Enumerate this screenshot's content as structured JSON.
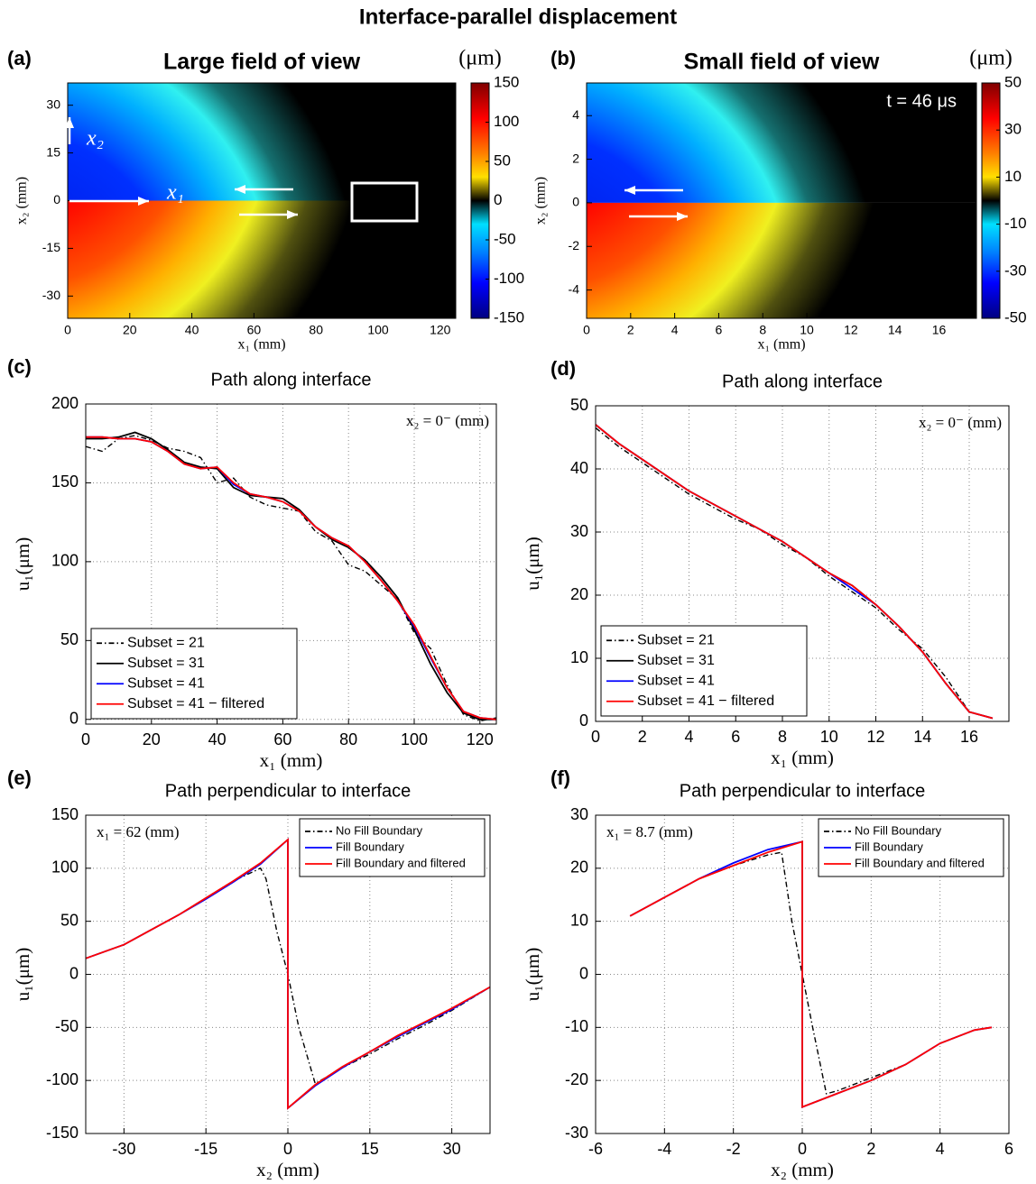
{
  "title": "Interface-parallel displacement",
  "chart_data": [
    {
      "type": "heatmap",
      "label": "(a)",
      "title": "Large field of view",
      "xlabel": "x₁ (mm)",
      "ylabel": "x₂ (mm)",
      "xlim": [
        0,
        125
      ],
      "xticks": [
        0,
        20,
        40,
        60,
        80,
        100,
        120
      ],
      "ylim": [
        -37,
        37
      ],
      "yticks": [
        -30,
        -15,
        0,
        15,
        30
      ],
      "colorbar_label": "(μm)",
      "clim": [
        -150,
        150
      ],
      "cticks": [
        -150,
        -100,
        -50,
        0,
        50,
        100,
        150
      ],
      "annotations": [
        "x₂",
        "x₁"
      ]
    },
    {
      "type": "heatmap",
      "label": "(b)",
      "title": "Small field of view",
      "xlabel": "x₁ (mm)",
      "ylabel": "x₂ (mm)",
      "xlim": [
        0,
        17.7
      ],
      "xticks": [
        0,
        2,
        4,
        6,
        8,
        10,
        12,
        14,
        16
      ],
      "ylim": [
        -5.3,
        5.5
      ],
      "yticks": [
        -4,
        -2,
        0,
        2,
        4
      ],
      "colorbar_label": "(μm)",
      "clim": [
        -50,
        50
      ],
      "cticks": [
        -50,
        -30,
        -10,
        10,
        30,
        50
      ],
      "annotations": [
        "t = 46 μs"
      ]
    },
    {
      "type": "line",
      "label": "(c)",
      "title": "Path along interface",
      "xlabel": "x₁ (mm)",
      "ylabel": "u₁(μm)",
      "xlim": [
        0,
        125
      ],
      "xticks": [
        0,
        20,
        40,
        60,
        80,
        100,
        120
      ],
      "ylim": [
        -3,
        200
      ],
      "yticks": [
        0,
        50,
        100,
        150,
        200
      ],
      "grid": true,
      "legend": "lower left",
      "annotations": [
        "x₂ = 0⁻ (mm)"
      ],
      "x": [
        0,
        5,
        10,
        15,
        20,
        25,
        30,
        35,
        40,
        45,
        50,
        55,
        60,
        65,
        70,
        75,
        80,
        85,
        90,
        95,
        100,
        105,
        110,
        115,
        120,
        125
      ],
      "series": [
        {
          "name": "Subset = 21",
          "color": "#000000",
          "style": "dashdot",
          "values": [
            173,
            170,
            178,
            180,
            177,
            172,
            170,
            166,
            150,
            153,
            141,
            136,
            134,
            132,
            119,
            113,
            98,
            94,
            85,
            76,
            55,
            45,
            22,
            3,
            -1,
            1
          ]
        },
        {
          "name": "Subset = 31",
          "color": "#000000",
          "style": "solid",
          "values": [
            178,
            178,
            179,
            182,
            178,
            171,
            163,
            160,
            159,
            147,
            142,
            141,
            140,
            133,
            122,
            114,
            109,
            101,
            90,
            77,
            57,
            35,
            17,
            4,
            0,
            0
          ]
        },
        {
          "name": "Subset = 41",
          "color": "#0000ff",
          "style": "solid",
          "values": [
            179,
            179,
            178,
            178,
            176,
            170,
            162,
            159,
            160,
            149,
            143,
            141,
            138,
            132,
            122,
            115,
            110,
            100,
            88,
            75,
            59,
            39,
            20,
            5,
            1,
            0
          ]
        },
        {
          "name": "Subset = 41 − filtered",
          "color": "#ff0000",
          "style": "solid",
          "values": [
            179,
            179,
            178,
            178,
            176,
            170,
            162,
            159,
            160,
            150,
            143,
            141,
            138,
            132,
            122,
            115,
            110,
            100,
            88,
            75,
            60,
            40,
            20,
            5,
            1,
            0
          ]
        }
      ]
    },
    {
      "type": "line",
      "label": "(d)",
      "title": "Path along interface",
      "xlabel": "x₁ (mm)",
      "ylabel": "u₁(μm)",
      "xlim": [
        0,
        17.7
      ],
      "xticks": [
        0,
        2,
        4,
        6,
        8,
        10,
        12,
        14,
        16
      ],
      "ylim": [
        0,
        50
      ],
      "yticks": [
        0,
        10,
        20,
        30,
        40,
        50
      ],
      "grid": true,
      "legend": "lower left",
      "annotations": [
        "x₂ = 0⁻ (mm)"
      ],
      "x": [
        0,
        1,
        2,
        3,
        4,
        5,
        6,
        7,
        8,
        9,
        10,
        11,
        12,
        13,
        14,
        15,
        16,
        17
      ],
      "series": [
        {
          "name": "Subset = 21",
          "color": "#000000",
          "style": "dashdot",
          "values": [
            46.5,
            43.5,
            41,
            38.5,
            36,
            34,
            32,
            30.5,
            28,
            26,
            23,
            20.5,
            18,
            14.5,
            11.5,
            7,
            1.5,
            0.5
          ]
        },
        {
          "name": "Subset = 31",
          "color": "#000000",
          "style": "solid",
          "values": [
            47,
            44,
            41.5,
            39,
            36.5,
            34.5,
            32.5,
            30.5,
            28.5,
            26,
            23.5,
            21.5,
            18.5,
            15,
            11,
            6,
            1.5,
            0.5
          ]
        },
        {
          "name": "Subset = 41",
          "color": "#0000ff",
          "style": "solid",
          "values": [
            47,
            44,
            41.5,
            39,
            36.5,
            34.5,
            32.5,
            30.5,
            28.5,
            26,
            23.5,
            21,
            18.5,
            15,
            11,
            6,
            1.5,
            0.5
          ]
        },
        {
          "name": "Subset = 41 − filtered",
          "color": "#ff0000",
          "style": "solid",
          "values": [
            47,
            44,
            41.5,
            39,
            36.5,
            34.5,
            32.5,
            30.5,
            28.5,
            26,
            23.5,
            21.5,
            18.5,
            15,
            11,
            6,
            1.5,
            0.5
          ]
        }
      ]
    },
    {
      "type": "line",
      "label": "(e)",
      "title": "Path perpendicular to interface",
      "xlabel": "x₂ (mm)",
      "ylabel": "u₁(μm)",
      "xlim": [
        -37,
        37
      ],
      "xticks": [
        -30,
        -15,
        0,
        15,
        30
      ],
      "ylim": [
        -150,
        150
      ],
      "yticks": [
        -150,
        -100,
        -50,
        0,
        50,
        100,
        150
      ],
      "grid": true,
      "legend": "upper right",
      "annotations": [
        "x₁ = 62 (mm)"
      ],
      "series": [
        {
          "name": "No Fill Boundary",
          "color": "#000000",
          "style": "dashdot",
          "x": [
            -37,
            -30,
            -25,
            -20,
            -15,
            -10,
            -5,
            -4,
            -2,
            0,
            2,
            5,
            10,
            15,
            20,
            25,
            30,
            37
          ],
          "values": [
            15,
            28,
            42,
            56,
            72,
            88,
            100,
            90,
            40,
            0,
            -50,
            -103,
            -88,
            -75,
            -61,
            -48,
            -34,
            -12
          ]
        },
        {
          "name": "Fill Boundary",
          "color": "#0000ff",
          "style": "solid",
          "x": [
            -37,
            -30,
            -25,
            -20,
            -15,
            -10,
            -5,
            0,
            0,
            5,
            10,
            15,
            20,
            25,
            30,
            37
          ],
          "values": [
            15,
            28,
            42,
            56,
            71,
            87,
            104,
            127,
            -126,
            -105,
            -88,
            -73,
            -59,
            -46,
            -33,
            -12
          ]
        },
        {
          "name": "Fill Boundary and filtered",
          "color": "#ff0000",
          "style": "solid",
          "x": [
            -37,
            -30,
            -25,
            -20,
            -15,
            -10,
            -5,
            0,
            0,
            5,
            10,
            15,
            20,
            25,
            30,
            37
          ],
          "values": [
            15,
            28,
            42,
            56,
            72,
            88,
            105,
            127,
            -126,
            -104,
            -87,
            -73,
            -58,
            -45,
            -32,
            -12
          ]
        }
      ]
    },
    {
      "type": "line",
      "label": "(f)",
      "title": "Path perpendicular to interface",
      "xlabel": "x₂ (mm)",
      "ylabel": "u₁(μm)",
      "xlim": [
        -6,
        6
      ],
      "xticks": [
        -6,
        -4,
        -2,
        0,
        2,
        4,
        6
      ],
      "ylim": [
        -30,
        30
      ],
      "yticks": [
        -30,
        -20,
        -10,
        0,
        10,
        20,
        30
      ],
      "grid": true,
      "legend": "upper right",
      "annotations": [
        "x₁ = 8.7 (mm)"
      ],
      "series": [
        {
          "name": "No Fill Boundary",
          "color": "#000000",
          "style": "dashdot",
          "x": [
            -5,
            -4,
            -3,
            -2,
            -1,
            -0.6,
            -0.3,
            0,
            0.3,
            0.7,
            1,
            2,
            3,
            4,
            5,
            5.5
          ],
          "values": [
            11,
            14.5,
            18,
            20.5,
            22.5,
            23,
            10,
            0,
            -10,
            -22.5,
            -22,
            -19.5,
            -17,
            -13,
            -10.5,
            -10
          ]
        },
        {
          "name": "Fill Boundary",
          "color": "#0000ff",
          "style": "solid",
          "x": [
            -5,
            -4,
            -3,
            -2,
            -1,
            0,
            0,
            1,
            2,
            3,
            4,
            5,
            5.5
          ],
          "values": [
            11,
            14.5,
            18,
            21,
            23.5,
            25,
            -25,
            -22.5,
            -20,
            -17,
            -13,
            -10.5,
            -10
          ]
        },
        {
          "name": "Fill Boundary and filtered",
          "color": "#ff0000",
          "style": "solid",
          "x": [
            -5,
            -4,
            -3,
            -2,
            -1,
            0,
            0,
            1,
            2,
            3,
            4,
            5,
            5.5
          ],
          "values": [
            11,
            14.5,
            18,
            20.5,
            23,
            25,
            -25,
            -22.5,
            -20,
            -17,
            -13,
            -10.5,
            -10
          ]
        }
      ]
    }
  ]
}
